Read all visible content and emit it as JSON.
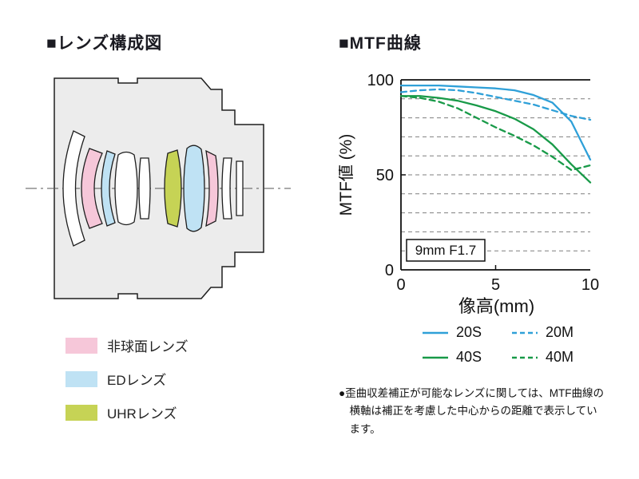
{
  "page": {
    "lens_section_title": "■レンズ構成図",
    "mtf_section_title": "■MTF曲線"
  },
  "lens_legend": {
    "items": [
      {
        "name": "aspherical-lens",
        "label": "非球面レンズ",
        "color": "#f6c7d9"
      },
      {
        "name": "ed-lens",
        "label": "EDレンズ",
        "color": "#bfe2f4"
      },
      {
        "name": "uhr-lens",
        "label": "UHRレンズ",
        "color": "#c6d355"
      }
    ]
  },
  "chart_data": {
    "type": "line",
    "title": "MTF曲線",
    "xlabel": "像高(mm)",
    "ylabel": "MTF値 (%)",
    "xlim": [
      0,
      10
    ],
    "ylim": [
      0,
      100
    ],
    "xticks": [
      0,
      5,
      10
    ],
    "yticks": [
      0,
      50,
      100
    ],
    "grid": "dashed horizontal gridlines",
    "grid_step": 10,
    "legend_position": "below",
    "annotation": {
      "text": "9mm F1.7"
    },
    "x": [
      0,
      1,
      2,
      3,
      4,
      5,
      6,
      7,
      8,
      9,
      10
    ],
    "series": [
      {
        "name": "20S",
        "color": "#2fa0d8",
        "style": "solid",
        "values": [
          97,
          97,
          97,
          96.5,
          96,
          95.5,
          94.5,
          92,
          88,
          78,
          58
        ]
      },
      {
        "name": "20M",
        "color": "#2fa0d8",
        "style": "dashed",
        "values": [
          93.5,
          94.5,
          95,
          94.5,
          93,
          91,
          89,
          87,
          84,
          81,
          79
        ]
      },
      {
        "name": "40S",
        "color": "#189a48",
        "style": "solid",
        "values": [
          91.5,
          91.5,
          90.5,
          89,
          86.5,
          83.5,
          79.5,
          74,
          66,
          55.5,
          46
        ]
      },
      {
        "name": "40M",
        "color": "#189a48",
        "style": "dashed",
        "values": [
          91.5,
          90.5,
          88.5,
          85,
          80,
          75,
          70.5,
          65.5,
          59.5,
          52.5,
          55
        ]
      }
    ]
  },
  "footnote": {
    "lines": [
      "●歪曲収差補正が可能なレンズに関しては、MTF曲線の",
      "横軸は補正を考慮した中心からの距離で表示してい",
      "ます。"
    ]
  }
}
